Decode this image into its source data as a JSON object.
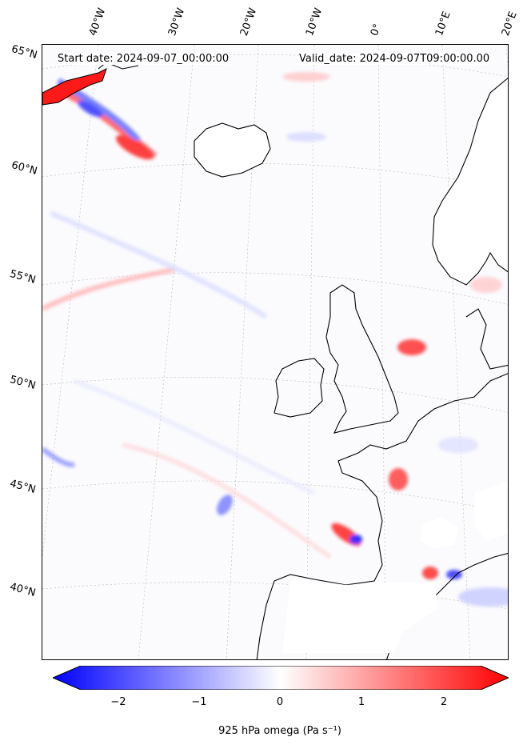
{
  "map": {
    "start_date": "Start date: 2024-09-07_00:00:00",
    "valid_date": "Valid_date: 2024-09-07T09:00:00.00",
    "lon_labels": [
      "40°W",
      "30°W",
      "20°W",
      "10°W",
      "0°",
      "10°E",
      "20°E"
    ],
    "lat_labels": [
      "65°N",
      "60°N",
      "55°N",
      "50°N",
      "45°N",
      "40°N"
    ]
  },
  "colorbar": {
    "label": "925 hPa omega (Pa s⁻¹)",
    "ticks": [
      "−2",
      "−1",
      "0",
      "1",
      "2"
    ],
    "range": [
      -2.5,
      2.5
    ],
    "colormap": "bwr",
    "neg_color": "#0000ff",
    "mid_color": "#ffffff",
    "pos_color": "#ff0000"
  }
}
